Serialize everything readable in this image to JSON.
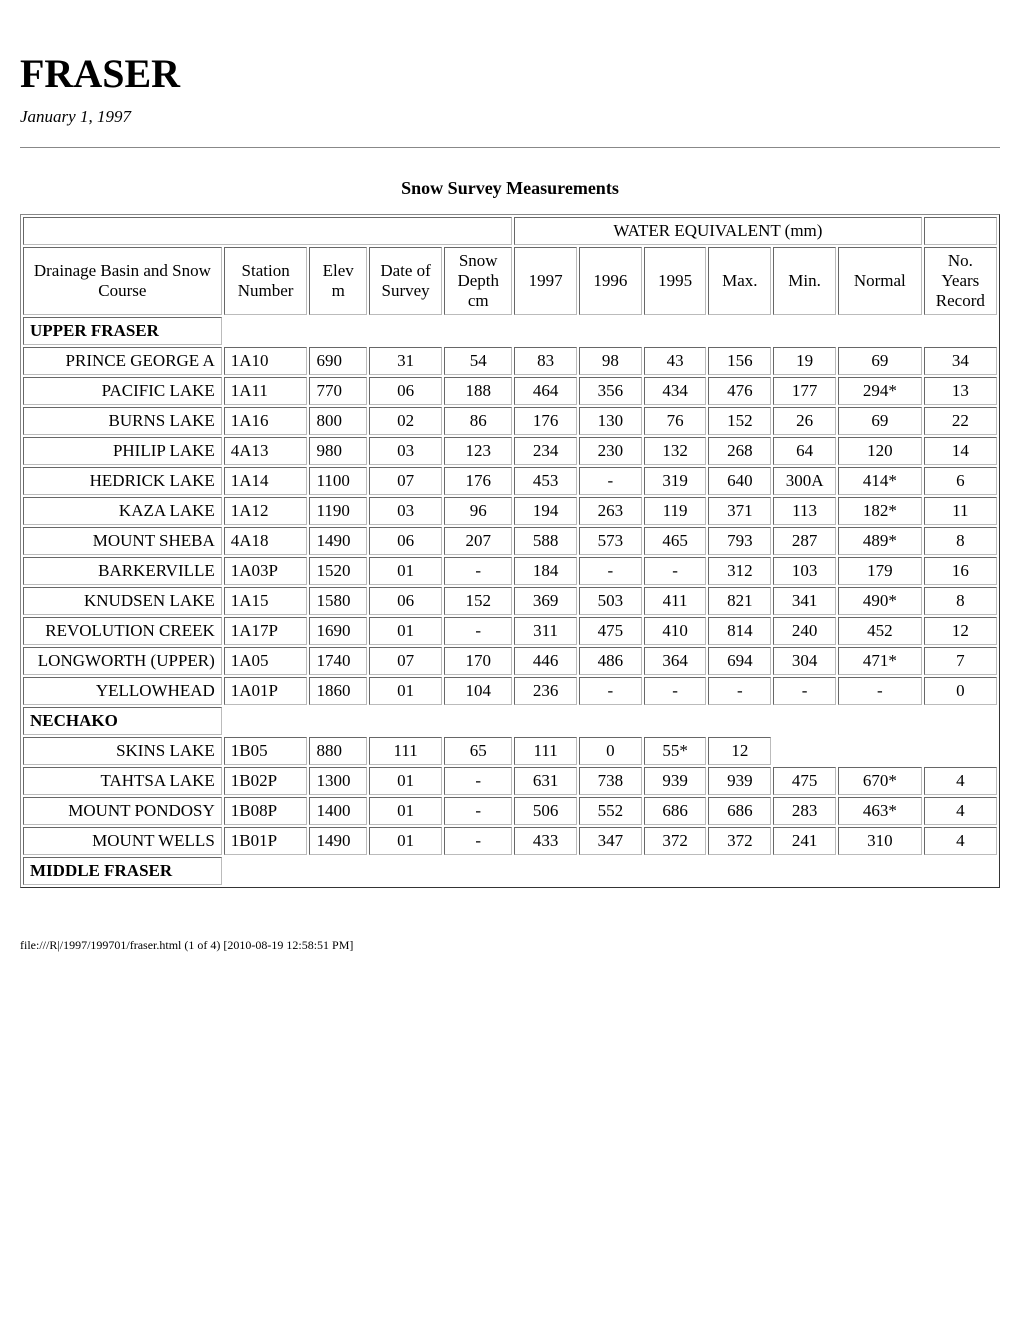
{
  "title": "FRASER",
  "date": "January 1, 1997",
  "caption": "Snow Survey Measurements",
  "header_group": "WATER EQUIVALENT (mm)",
  "columns": [
    "Drainage Basin and Snow Course",
    "Station Number",
    "Elev m",
    "Date of Survey",
    "Snow Depth cm",
    "1997",
    "1996",
    "1995",
    "Max.",
    "Min.",
    "Normal",
    "No. Years Record"
  ],
  "sections": [
    {
      "name": "UPPER FRASER",
      "rows": [
        {
          "course": "PRINCE GEORGE A",
          "station": "1A10",
          "elev": "690",
          "date": "31",
          "depth": "54",
          "y1997": "83",
          "y1996": "98",
          "y1995": "43",
          "max": "156",
          "min": "19",
          "normal": "69",
          "years": "34"
        },
        {
          "course": "PACIFIC LAKE",
          "station": "1A11",
          "elev": "770",
          "date": "06",
          "depth": "188",
          "y1997": "464",
          "y1996": "356",
          "y1995": "434",
          "max": "476",
          "min": "177",
          "normal": "294*",
          "years": "13"
        },
        {
          "course": "BURNS LAKE",
          "station": "1A16",
          "elev": "800",
          "date": "02",
          "depth": "86",
          "y1997": "176",
          "y1996": "130",
          "y1995": "76",
          "max": "152",
          "min": "26",
          "normal": "69",
          "years": "22"
        },
        {
          "course": "PHILIP LAKE",
          "station": "4A13",
          "elev": "980",
          "date": "03",
          "depth": "123",
          "y1997": "234",
          "y1996": "230",
          "y1995": "132",
          "max": "268",
          "min": "64",
          "normal": "120",
          "years": "14"
        },
        {
          "course": "HEDRICK LAKE",
          "station": "1A14",
          "elev": "1100",
          "date": "07",
          "depth": "176",
          "y1997": "453",
          "y1996": "-",
          "y1995": "319",
          "max": "640",
          "min": "300A",
          "normal": "414*",
          "years": "6"
        },
        {
          "course": "KAZA LAKE",
          "station": "1A12",
          "elev": "1190",
          "date": "03",
          "depth": "96",
          "y1997": "194",
          "y1996": "263",
          "y1995": "119",
          "max": "371",
          "min": "113",
          "normal": "182*",
          "years": "11"
        },
        {
          "course": "MOUNT SHEBA",
          "station": "4A18",
          "elev": "1490",
          "date": "06",
          "depth": "207",
          "y1997": "588",
          "y1996": "573",
          "y1995": "465",
          "max": "793",
          "min": "287",
          "normal": "489*",
          "years": "8"
        },
        {
          "course": "BARKERVILLE",
          "station": "1A03P",
          "elev": "1520",
          "date": "01",
          "depth": "-",
          "y1997": "184",
          "y1996": "-",
          "y1995": "-",
          "max": "312",
          "min": "103",
          "normal": "179",
          "years": "16"
        },
        {
          "course": "KNUDSEN LAKE",
          "station": "1A15",
          "elev": "1580",
          "date": "06",
          "depth": "152",
          "y1997": "369",
          "y1996": "503",
          "y1995": "411",
          "max": "821",
          "min": "341",
          "normal": "490*",
          "years": "8"
        },
        {
          "course": "REVOLUTION CREEK",
          "station": "1A17P",
          "elev": "1690",
          "date": "01",
          "depth": "-",
          "y1997": "311",
          "y1996": "475",
          "y1995": "410",
          "max": "814",
          "min": "240",
          "normal": "452",
          "years": "12"
        },
        {
          "course": "LONGWORTH (UPPER)",
          "station": "1A05",
          "elev": "1740",
          "date": "07",
          "depth": "170",
          "y1997": "446",
          "y1996": "486",
          "y1995": "364",
          "max": "694",
          "min": "304",
          "normal": "471*",
          "years": "7"
        },
        {
          "course": "YELLOWHEAD",
          "station": "1A01P",
          "elev": "1860",
          "date": "01",
          "depth": "104",
          "y1997": "236",
          "y1996": "-",
          "y1995": "-",
          "max": "-",
          "min": "-",
          "normal": "-",
          "years": "0"
        }
      ]
    },
    {
      "name": "NECHAKO",
      "rows": [
        {
          "course": "SKINS LAKE",
          "station": "1B05",
          "elev": "880",
          "date": "111",
          "depth": "65",
          "y1997": "111",
          "y1996": "0",
          "y1995": "55*",
          "max": "12",
          "min": "",
          "normal": "",
          "years": ""
        },
        {
          "course": "TAHTSA LAKE",
          "station": "1B02P",
          "elev": "1300",
          "date": "01",
          "depth": "-",
          "y1997": "631",
          "y1996": "738",
          "y1995": "939",
          "max": "939",
          "min": "475",
          "normal": "670*",
          "years": "4"
        },
        {
          "course": "MOUNT PONDOSY",
          "station": "1B08P",
          "elev": "1400",
          "date": "01",
          "depth": "-",
          "y1997": "506",
          "y1996": "552",
          "y1995": "686",
          "max": "686",
          "min": "283",
          "normal": "463*",
          "years": "4"
        },
        {
          "course": "MOUNT WELLS",
          "station": "1B01P",
          "elev": "1490",
          "date": "01",
          "depth": "-",
          "y1997": "433",
          "y1996": "347",
          "y1995": "372",
          "max": "372",
          "min": "241",
          "normal": "310",
          "years": "4"
        }
      ]
    },
    {
      "name": "MIDDLE FRASER",
      "rows": []
    }
  ],
  "col_widths_pct": [
    19,
    8,
    5.5,
    7,
    6.5,
    6,
    6,
    6,
    6,
    6,
    8,
    7
  ],
  "footer": "file:///R|/1997/199701/fraser.html (1 of 4) [2010-08-19 12:58:51 PM]"
}
